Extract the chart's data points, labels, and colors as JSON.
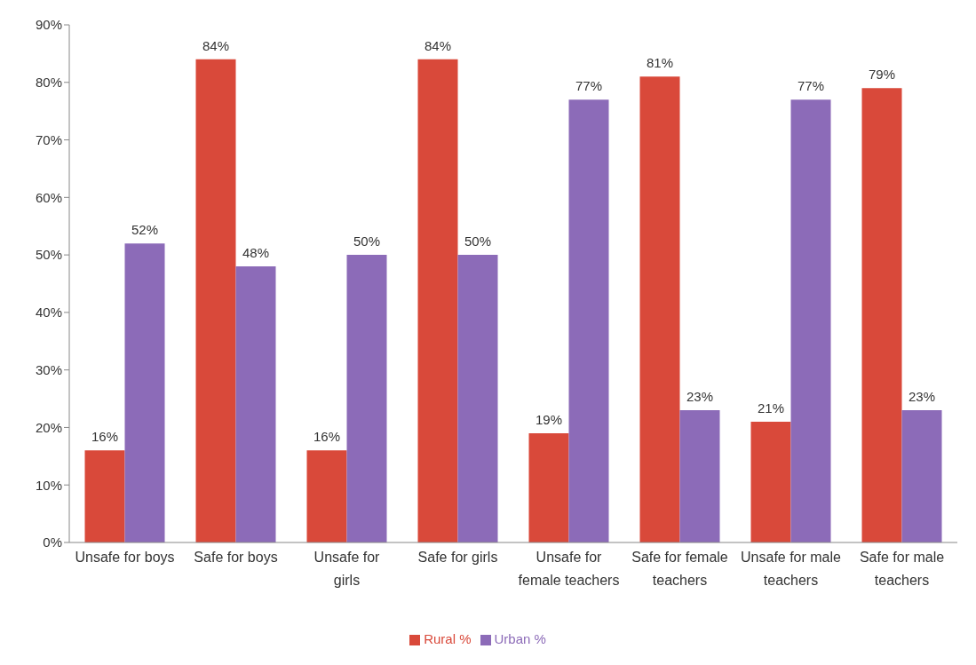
{
  "chart_data": {
    "type": "bar",
    "categories": [
      "Unsafe for boys",
      "Safe for boys",
      "Unsafe for girls",
      "Safe for girls",
      "Unsafe for female teachers",
      "Safe for female teachers",
      "Unsafe for male teachers",
      "Safe for male teachers"
    ],
    "series": [
      {
        "name": "Rural %",
        "color": "#d9493a",
        "values": [
          16,
          84,
          16,
          84,
          19,
          81,
          21,
          79
        ],
        "value_labels": [
          "16%",
          "84%",
          "16%",
          "84%",
          "19%",
          "81%",
          "21%",
          "79%"
        ]
      },
      {
        "name": "Urban %",
        "color": "#8c6bb8",
        "values": [
          52,
          48,
          50,
          50,
          77,
          23,
          77,
          23
        ],
        "value_labels": [
          "52%",
          "48%",
          "50%",
          "50%",
          "77%",
          "23%",
          "77%",
          "23%"
        ]
      }
    ],
    "ylim": [
      0,
      90
    ],
    "yticks": [
      {
        "value": 0,
        "label": "0%"
      },
      {
        "value": 10,
        "label": "10%"
      },
      {
        "value": 20,
        "label": "20%"
      },
      {
        "value": 30,
        "label": "30%"
      },
      {
        "value": 40,
        "label": "40%"
      },
      {
        "value": 50,
        "label": "50%"
      },
      {
        "value": 60,
        "label": "60%"
      },
      {
        "value": 70,
        "label": "70%"
      },
      {
        "value": 80,
        "label": "80%"
      },
      {
        "value": 90,
        "label": "90%"
      }
    ],
    "grid": false,
    "legend": "bottom"
  }
}
